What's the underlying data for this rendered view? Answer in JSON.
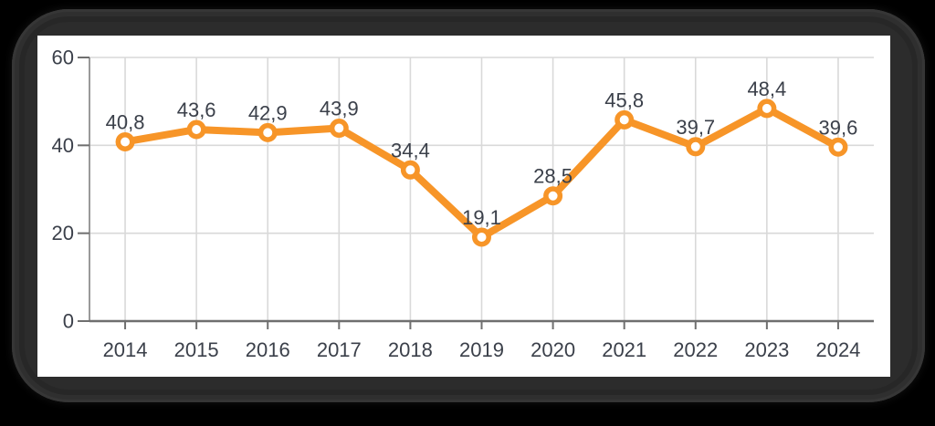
{
  "page": {
    "background_color": "#000000",
    "card_frame_color": "#2c2c2c",
    "panel_color": "#ffffff"
  },
  "chart_data": {
    "type": "line",
    "title": "",
    "xlabel": "",
    "ylabel": "",
    "categories": [
      "2014",
      "2015",
      "2016",
      "2017",
      "2018",
      "2019",
      "2020",
      "2021",
      "2022",
      "2023",
      "2024"
    ],
    "series": [
      {
        "name": "values",
        "values": [
          40.8,
          43.6,
          42.9,
          43.9,
          34.4,
          19.1,
          28.5,
          45.8,
          39.7,
          48.4,
          39.6
        ],
        "point_labels": [
          "40,8",
          "43,6",
          "42,9",
          "43,9",
          "34,4",
          "19,1",
          "28,5",
          "45,8",
          "39,7",
          "48,4",
          "39,6"
        ]
      }
    ],
    "ylim": [
      0,
      60
    ],
    "yticks": [
      0,
      20,
      40,
      60
    ],
    "ytick_labels": [
      "0",
      "20",
      "40",
      "60"
    ],
    "grid": true,
    "legend": false,
    "colors": {
      "line": "#f79528",
      "marker_fill": "#ffffff",
      "gridline": "#d9d9d9",
      "x_axis": "#6f6f6f",
      "y_axis": "#9a9a9a",
      "tick": "#6f6f6f",
      "label_text": "#3b404a"
    }
  }
}
